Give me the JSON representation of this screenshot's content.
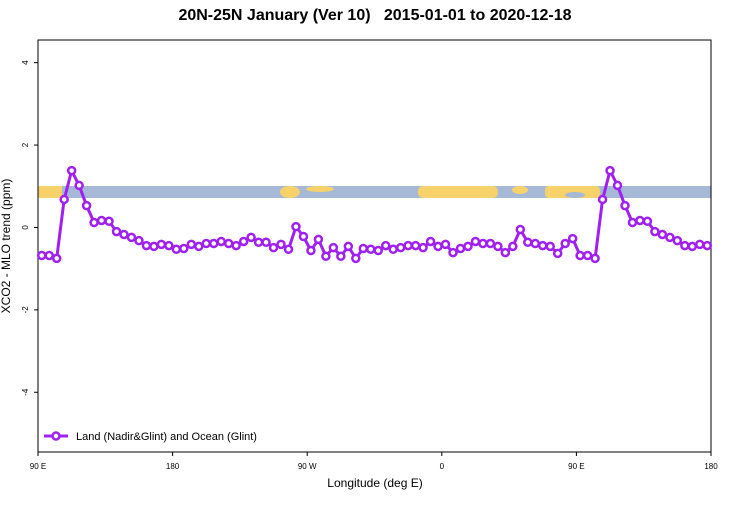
{
  "chart_data": {
    "type": "line",
    "title": "20N-25N January (Ver 10)   2015-01-01 to 2020-12-18",
    "x_label": "Longitude (deg E)",
    "y_label": "XCO2 - MLO trend (ppm)",
    "xlim": [
      90,
      540
    ],
    "ylim": [
      -5.45,
      4.55
    ],
    "xticks": [
      {
        "value": 90,
        "label": "90 E"
      },
      180,
      {
        "value": 270,
        "label": "90 W"
      },
      {
        "value": 360,
        "label": "0"
      },
      {
        "value": 450,
        "label": "90 E"
      },
      {
        "value": 540,
        "label": "180"
      }
    ],
    "yticks": [
      -4,
      -2,
      0,
      2,
      4
    ],
    "legend": "bottom-left",
    "series": [
      {
        "name": "Land (Nadir&Glint) and Ocean (Glint)",
        "color": "#a020f0",
        "x": [
          92.5,
          97.5,
          102.5,
          107.5,
          112.5,
          117.5,
          122.5,
          127.5,
          132.5,
          137.5,
          142.5,
          147.5,
          152.5,
          157.5,
          162.5,
          167.5,
          172.5,
          177.5,
          182.5,
          187.5,
          192.5,
          197.5,
          202.5,
          207.5,
          212.5,
          217.5,
          222.5,
          227.5,
          232.5,
          237.5,
          242.5,
          247.5,
          252.5,
          257.5,
          262.5,
          267.5,
          272.5,
          277.5,
          282.5,
          287.5,
          292.5,
          297.5,
          302.5,
          307.5,
          312.5,
          317.5,
          322.5,
          327.5,
          332.5,
          337.5,
          342.5,
          347.5,
          352.5,
          357.5,
          362.5,
          367.5,
          372.5,
          377.5,
          382.5,
          387.5,
          392.5,
          397.5,
          402.5,
          407.5,
          412.5,
          417.5,
          422.5,
          427.5,
          432.5,
          437.5,
          442.5,
          447.5,
          452.5,
          457.5,
          462.5,
          467.5,
          472.5,
          477.5,
          482.5,
          487.5,
          492.5,
          497.5,
          502.5,
          507.5,
          512.5,
          517.5,
          522.5,
          527.5,
          532.5,
          537.5
        ],
        "values": [
          -0.68,
          -0.68,
          -0.75,
          0.68,
          1.38,
          1.02,
          0.53,
          0.12,
          0.17,
          0.15,
          -0.1,
          -0.17,
          -0.24,
          -0.32,
          -0.44,
          -0.46,
          -0.41,
          -0.44,
          -0.53,
          -0.51,
          -0.41,
          -0.46,
          -0.39,
          -0.39,
          -0.34,
          -0.39,
          -0.44,
          -0.34,
          -0.24,
          -0.36,
          -0.36,
          -0.49,
          -0.41,
          -0.53,
          0.02,
          -0.22,
          -0.56,
          -0.29,
          -0.7,
          -0.49,
          -0.7,
          -0.46,
          -0.75,
          -0.51,
          -0.53,
          -0.56,
          -0.44,
          -0.53,
          -0.49,
          -0.44,
          -0.44,
          -0.49,
          -0.34,
          -0.46,
          -0.41,
          -0.61,
          -0.51,
          -0.46,
          -0.34,
          -0.39,
          -0.39,
          -0.46,
          -0.61,
          -0.46,
          -0.05,
          -0.36,
          -0.39,
          -0.44,
          -0.46,
          -0.63,
          -0.39,
          -0.27,
          -0.68,
          -0.68,
          -0.75,
          0.68,
          1.38,
          1.02,
          0.53,
          0.12,
          0.17,
          0.15,
          -0.1,
          -0.17,
          -0.24,
          -0.32,
          -0.44,
          -0.46,
          -0.41,
          -0.44
        ]
      }
    ]
  }
}
